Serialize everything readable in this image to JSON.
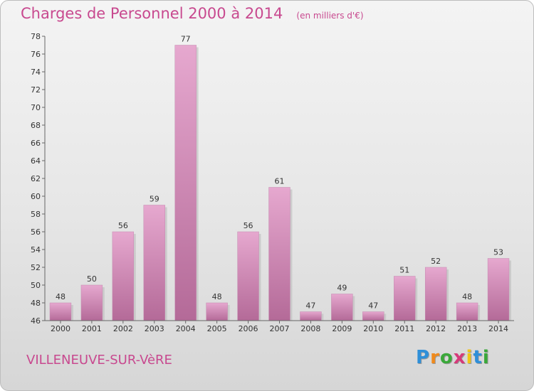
{
  "chart_data": {
    "type": "bar",
    "title": "Charges de Personnel 2000 à 2014",
    "subtitle": "(en milliers d'€)",
    "categories": [
      "2000",
      "2001",
      "2002",
      "2003",
      "2004",
      "2005",
      "2006",
      "2007",
      "2008",
      "2009",
      "2010",
      "2011",
      "2012",
      "2013",
      "2014"
    ],
    "values": [
      48,
      50,
      56,
      59,
      77,
      48,
      56,
      61,
      47,
      49,
      47,
      51,
      52,
      48,
      53
    ],
    "ylim": [
      46,
      78
    ],
    "yticks": [
      46,
      48,
      50,
      52,
      54,
      56,
      58,
      60,
      62,
      64,
      66,
      68,
      70,
      72,
      74,
      76,
      78
    ],
    "grid": false,
    "colors": {
      "bar_light": "#e6a8cf",
      "bar_dark": "#b46a98",
      "title": "#c8498f"
    }
  },
  "commune": "VILLENEUVE-SUR-VèRE",
  "logo": {
    "letters": [
      "P",
      "r",
      "o",
      "x",
      "i",
      "t",
      "i"
    ],
    "colors": [
      "#2f8fd8",
      "#f08a1c",
      "#3aa83a",
      "#d63a7a",
      "#f0c419",
      "#2f8fd8",
      "#3aa83a"
    ]
  }
}
